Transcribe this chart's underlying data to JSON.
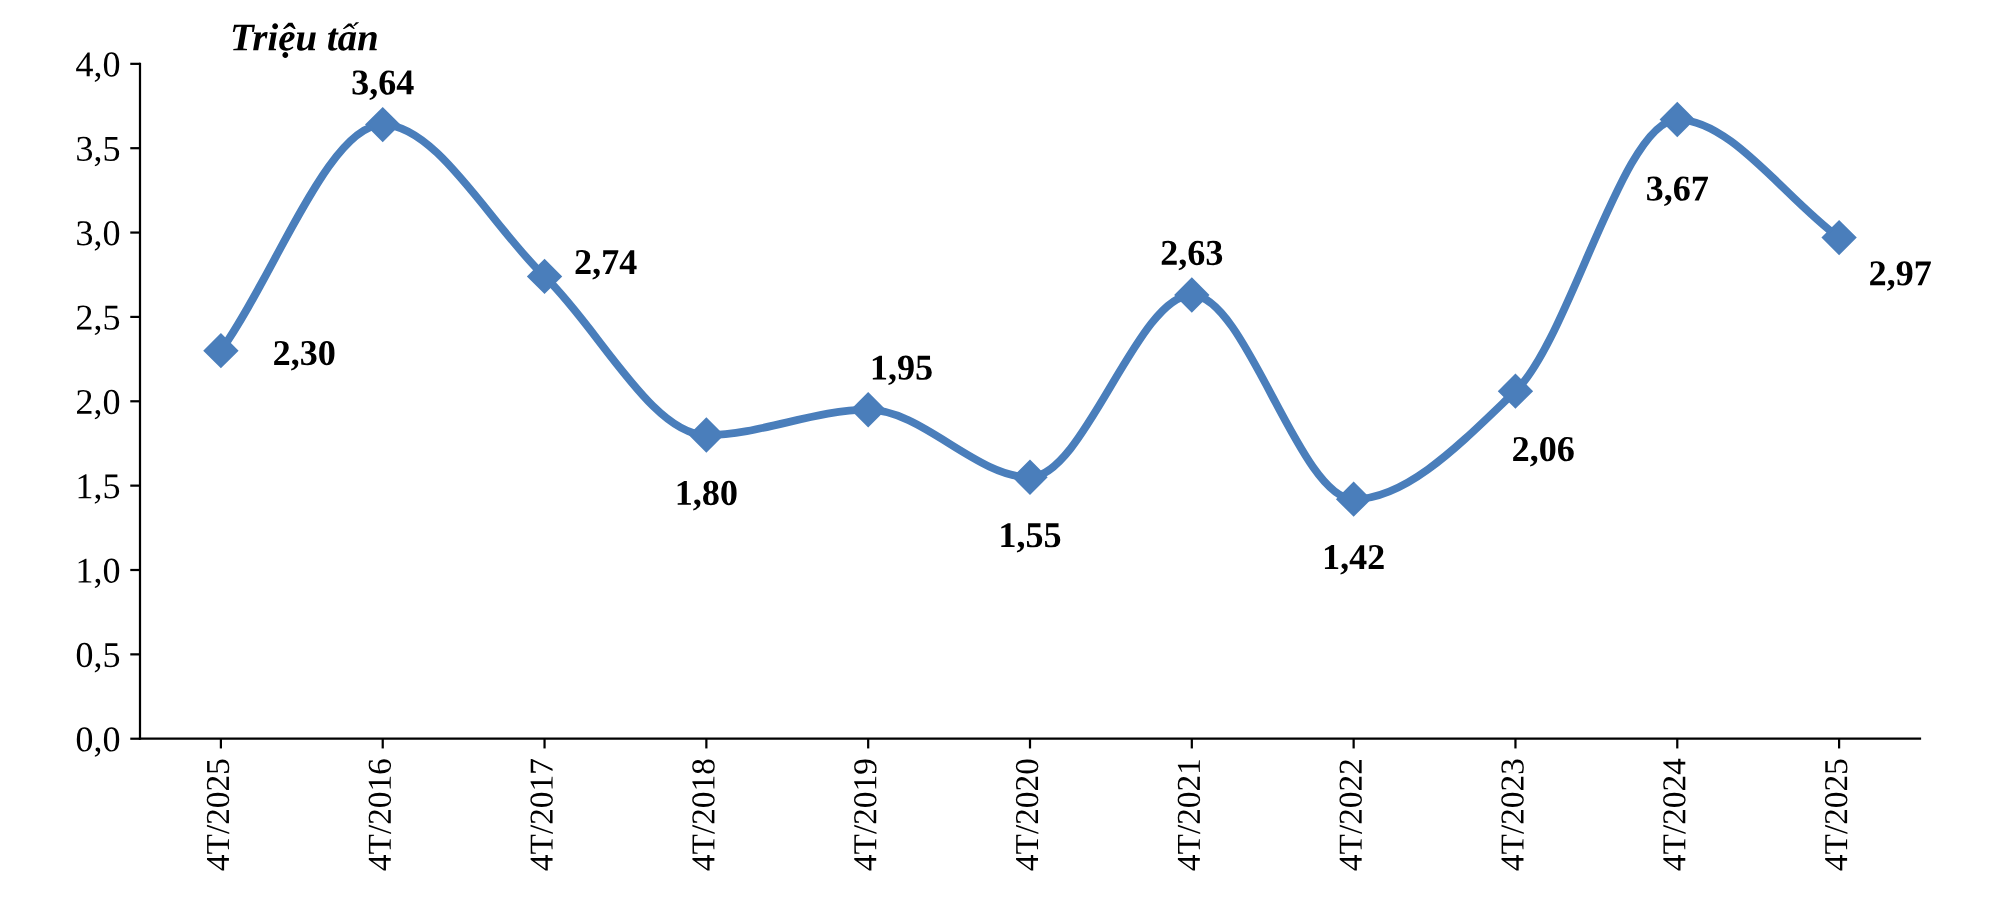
{
  "chart_data": {
    "type": "line",
    "ylabel": "Triệu tấn",
    "categories": [
      "4T/2025",
      "4T/2016",
      "4T/2017",
      "4T/2018",
      "4T/2019",
      "4T/2020",
      "4T/2021",
      "4T/2022",
      "4T/2023",
      "4T/2024",
      "4T/2025"
    ],
    "series": [
      {
        "color": "#4a7ebb",
        "values": [
          2.3,
          3.64,
          2.74,
          1.8,
          1.95,
          1.55,
          2.63,
          1.42,
          2.06,
          3.67,
          2.97
        ],
        "value_labels": [
          "2,30",
          "3,64",
          "2,74",
          "1,80",
          "1,95",
          "1,55",
          "2,63",
          "1,42",
          "2,06",
          "3,67",
          "2,97"
        ]
      }
    ],
    "ylim": [
      0,
      4
    ],
    "yticks": [
      {
        "value": 0,
        "label": "0,0"
      },
      {
        "value": 0.5,
        "label": "0,5"
      },
      {
        "value": 1,
        "label": "1,0"
      },
      {
        "value": 1.5,
        "label": "1,5"
      },
      {
        "value": 2,
        "label": "2,0"
      },
      {
        "value": 2.5,
        "label": "2,5"
      },
      {
        "value": 3,
        "label": "3,0"
      },
      {
        "value": 3.5,
        "label": "3,5"
      },
      {
        "value": 4,
        "label": "4,0"
      }
    ],
    "grid": false,
    "legend": false,
    "marker": "diamond",
    "line_style": "solid"
  }
}
